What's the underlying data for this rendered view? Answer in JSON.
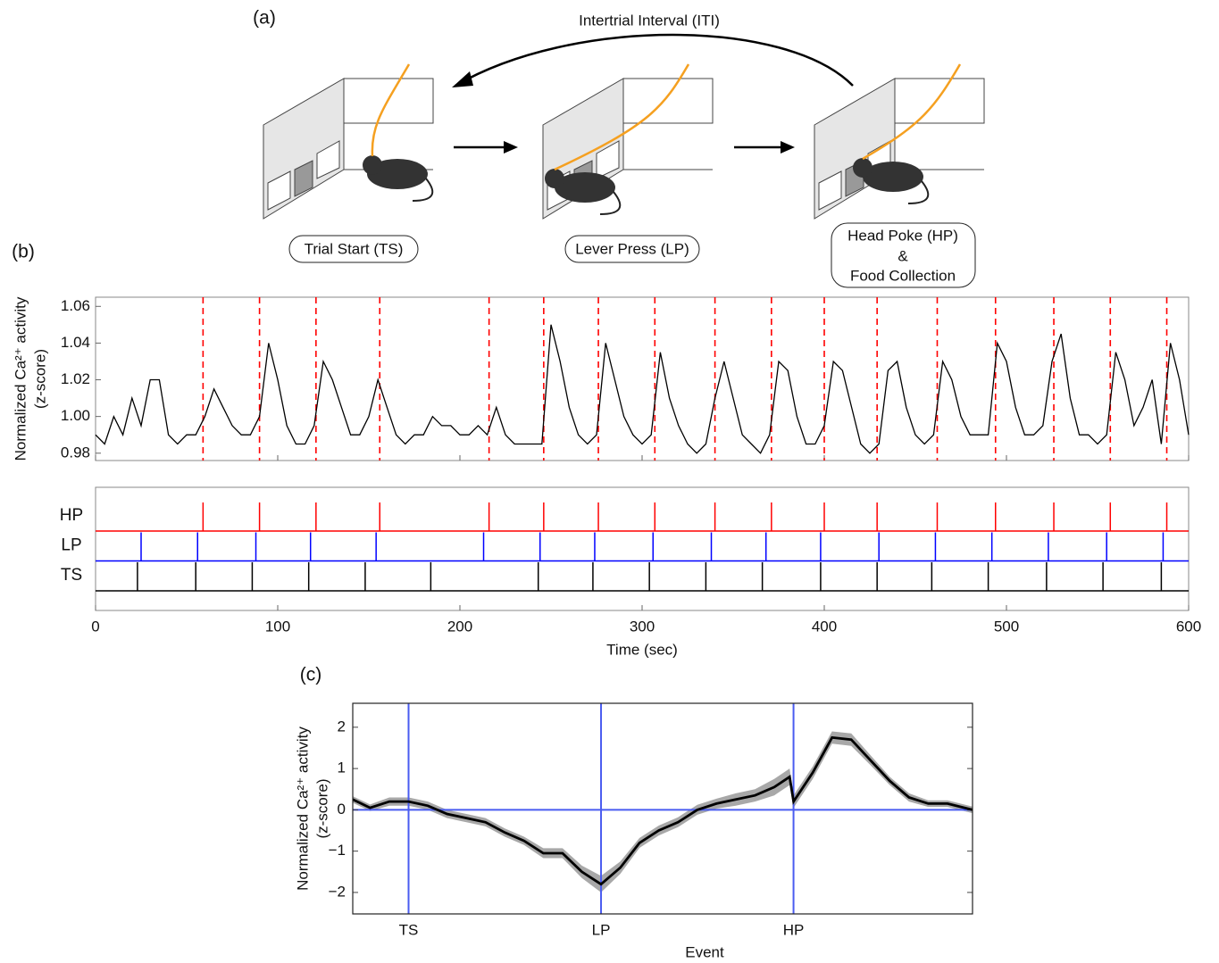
{
  "panel_labels": [
    "(a)",
    "(b)",
    "(c)"
  ],
  "diagram": {
    "loop_label": "Intertrial Interval (ITI)",
    "stages": [
      {
        "lines": [
          "Trial Start (TS)"
        ]
      },
      {
        "lines": [
          "Lever Press (LP)"
        ]
      },
      {
        "lines": [
          "Head Poke (HP)",
          "&",
          "Food Collection"
        ]
      }
    ]
  },
  "chart_data": [
    {
      "type": "line",
      "x": [
        0,
        5,
        10,
        15,
        20,
        25,
        30,
        35,
        40,
        45,
        50,
        55,
        60,
        65,
        70,
        75,
        80,
        85,
        90,
        95,
        100,
        105,
        110,
        115,
        120,
        125,
        130,
        135,
        140,
        145,
        150,
        155,
        160,
        165,
        170,
        175,
        180,
        185,
        190,
        195,
        200,
        205,
        210,
        215,
        220,
        225,
        230,
        235,
        240,
        245,
        250,
        255,
        260,
        265,
        270,
        275,
        280,
        285,
        290,
        295,
        300,
        305,
        310,
        315,
        320,
        325,
        330,
        335,
        340,
        345,
        350,
        355,
        360,
        365,
        370,
        375,
        380,
        385,
        390,
        395,
        400,
        405,
        410,
        415,
        420,
        425,
        430,
        435,
        440,
        445,
        450,
        455,
        460,
        465,
        470,
        475,
        480,
        485,
        490,
        495,
        500,
        505,
        510,
        515,
        520,
        525,
        530,
        535,
        540,
        545,
        550,
        555,
        560,
        565,
        570,
        575,
        580,
        585,
        590,
        595,
        600
      ],
      "values": [
        0.99,
        0.985,
        1.0,
        0.99,
        1.01,
        0.995,
        1.02,
        1.02,
        0.99,
        0.985,
        0.99,
        0.99,
        1.0,
        1.015,
        1.005,
        0.995,
        0.99,
        0.99,
        1.0,
        1.04,
        1.02,
        0.995,
        0.985,
        0.985,
        0.995,
        1.03,
        1.02,
        1.005,
        0.99,
        0.99,
        1.0,
        1.02,
        1.005,
        0.99,
        0.985,
        0.99,
        0.99,
        1.0,
        0.995,
        0.995,
        0.99,
        0.99,
        0.995,
        0.99,
        1.005,
        0.99,
        0.985,
        0.985,
        0.985,
        0.985,
        1.05,
        1.03,
        1.005,
        0.99,
        0.985,
        0.99,
        1.04,
        1.02,
        1.0,
        0.99,
        0.985,
        0.99,
        1.035,
        1.01,
        0.995,
        0.985,
        0.98,
        0.985,
        1.01,
        1.03,
        1.01,
        0.99,
        0.985,
        0.98,
        0.99,
        1.03,
        1.025,
        1.0,
        0.985,
        0.985,
        0.995,
        1.03,
        1.025,
        1.005,
        0.985,
        0.98,
        0.985,
        1.025,
        1.03,
        1.005,
        0.99,
        0.985,
        0.99,
        1.03,
        1.02,
        1.0,
        0.99,
        0.99,
        0.99,
        1.04,
        1.03,
        1.005,
        0.99,
        0.99,
        0.995,
        1.03,
        1.045,
        1.01,
        0.99,
        0.99,
        0.985,
        0.99,
        1.035,
        1.02,
        0.995,
        1.005,
        1.02,
        0.985,
        1.04,
        1.02,
        0.99
      ],
      "color": "#000000",
      "xlim": [
        0,
        600
      ],
      "xticks": [
        0,
        100,
        200,
        300,
        400,
        500,
        600
      ],
      "xlabel": "Time (sec)",
      "ylabel": [
        "Normalized Ca²⁺ activity",
        "(z-score)"
      ],
      "ylim": [
        0.976,
        1.065
      ],
      "yticks": [
        0.98,
        {
          "value": 1,
          "label": "1.00"
        },
        1.02,
        1.04,
        1.06
      ],
      "trace_marker_event": 0,
      "events": [
        {
          "name": "HP",
          "color": "#ff0000",
          "times": [
            59,
            90,
            121,
            156,
            216,
            246,
            276,
            307,
            340,
            371,
            400,
            429,
            462,
            494,
            526,
            557,
            588
          ]
        },
        {
          "name": "LP",
          "color": "#0000ff",
          "times": [
            25,
            56,
            88,
            118,
            154,
            213,
            244,
            274,
            306,
            338,
            368,
            398,
            430,
            461,
            492,
            523,
            555,
            586
          ]
        },
        {
          "name": "TS",
          "color": "#000000",
          "times": [
            23,
            55,
            86,
            117,
            148,
            184,
            243,
            273,
            304,
            335,
            366,
            398,
            429,
            459,
            490,
            522,
            553,
            585
          ]
        }
      ]
    },
    {
      "type": "line-band",
      "x": [
        -0.29,
        -0.2,
        -0.1,
        0,
        0.1,
        0.2,
        0.3,
        0.4,
        0.5,
        0.6,
        0.7,
        0.8,
        0.9,
        1.0,
        1.1,
        1.2,
        1.3,
        1.4,
        1.5,
        1.6,
        1.7,
        1.8,
        1.9,
        1.98,
        2.0,
        2.1,
        2.2,
        2.3,
        2.4,
        2.5,
        2.6,
        2.7,
        2.8,
        2.93
      ],
      "values": [
        0.25,
        0.05,
        0.2,
        0.2,
        0.1,
        -0.1,
        -0.2,
        -0.3,
        -0.55,
        -0.75,
        -1.05,
        -1.05,
        -1.5,
        -1.8,
        -1.4,
        -0.8,
        -0.5,
        -0.3,
        0.0,
        0.15,
        0.25,
        0.35,
        0.55,
        0.8,
        0.2,
        0.9,
        1.75,
        1.7,
        1.2,
        0.7,
        0.3,
        0.15,
        0.15,
        0.0
      ],
      "errors": [
        0.08,
        0.08,
        0.1,
        0.1,
        0.1,
        0.1,
        0.1,
        0.1,
        0.1,
        0.1,
        0.12,
        0.12,
        0.15,
        0.2,
        0.15,
        0.12,
        0.12,
        0.12,
        0.12,
        0.12,
        0.15,
        0.15,
        0.2,
        0.2,
        0.15,
        0.15,
        0.15,
        0.15,
        0.12,
        0.1,
        0.1,
        0.08,
        0.08,
        0.08
      ],
      "color": "#000000",
      "band_color": "#a8a8a8",
      "reference_color": "#4a5cf0",
      "reference_y": 0,
      "xlim": [
        -0.29,
        2.93
      ],
      "xticks": [
        {
          "value": 0,
          "label": "TS"
        },
        {
          "value": 1,
          "label": "LP"
        },
        {
          "value": 2,
          "label": "HP"
        }
      ],
      "xlabel": "Event",
      "ylabel": [
        "Normalized Ca²⁺ activity",
        "(z-score)"
      ],
      "ylim": [
        -2.52,
        2.58
      ],
      "yticks": [
        {
          "value": -2,
          "label": "−2"
        },
        {
          "value": -1,
          "label": "−1"
        },
        0,
        1,
        2
      ]
    }
  ]
}
